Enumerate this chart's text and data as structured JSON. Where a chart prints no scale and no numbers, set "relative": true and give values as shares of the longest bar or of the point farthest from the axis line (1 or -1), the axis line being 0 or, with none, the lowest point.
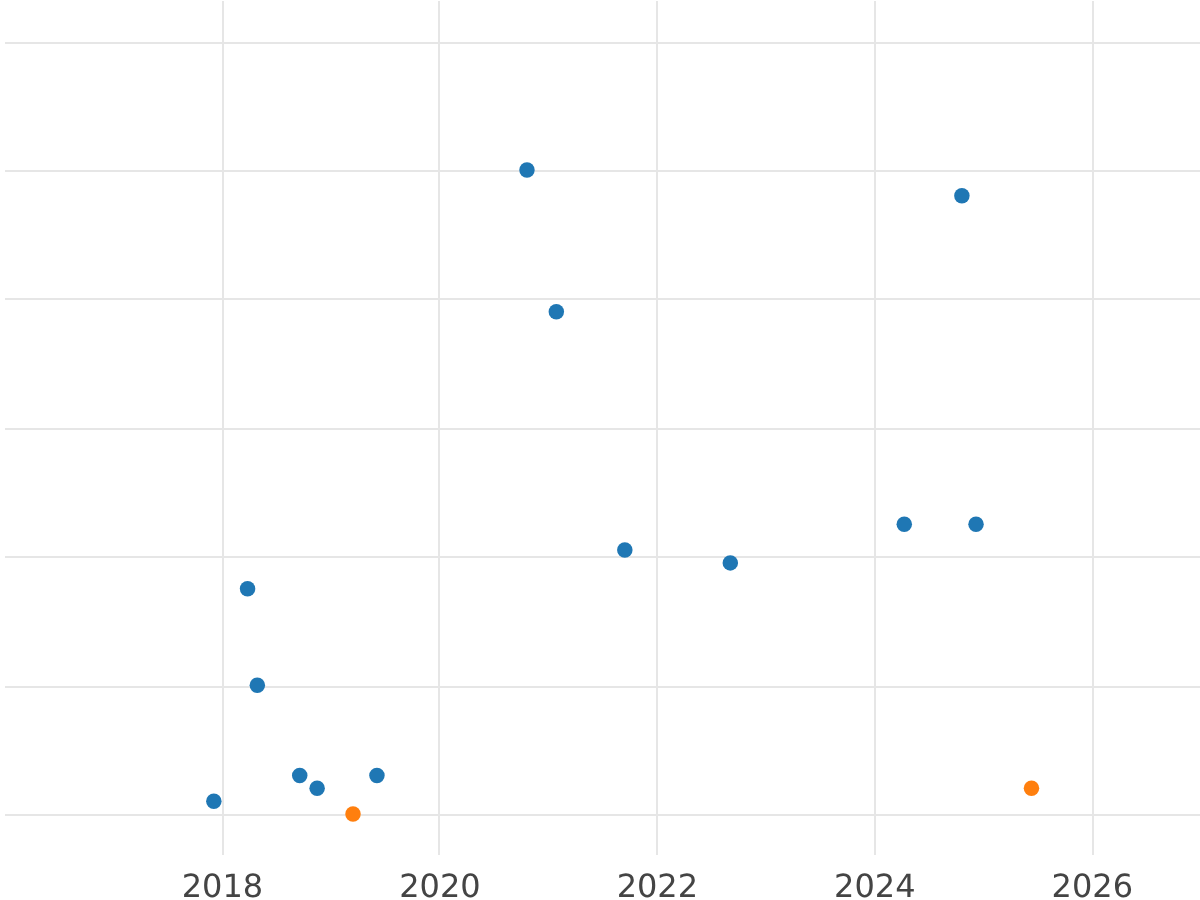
{
  "chart_data": {
    "type": "scatter",
    "relative": true,
    "xlim": [
      2016,
      2027
    ],
    "xticks": [
      2018,
      2020,
      2022,
      2024,
      2026
    ],
    "grid": true,
    "series": [
      {
        "color": "#1f77b4",
        "x": [
          2017.93,
          2018.24,
          2018.33,
          2018.72,
          2018.88,
          2019.43,
          2020.81,
          2021.08,
          2021.71,
          2022.68,
          2024.28,
          2024.81,
          2024.94
        ],
        "values": [
          0.02,
          0.35,
          0.2,
          0.06,
          0.04,
          0.06,
          1,
          0.78,
          0.41,
          0.39,
          0.45,
          0.96,
          0.45
        ]
      },
      {
        "color": "#ff7f0e",
        "x": [
          2019.21,
          2025.45
        ],
        "values": [
          0,
          0.04
        ]
      }
    ]
  }
}
